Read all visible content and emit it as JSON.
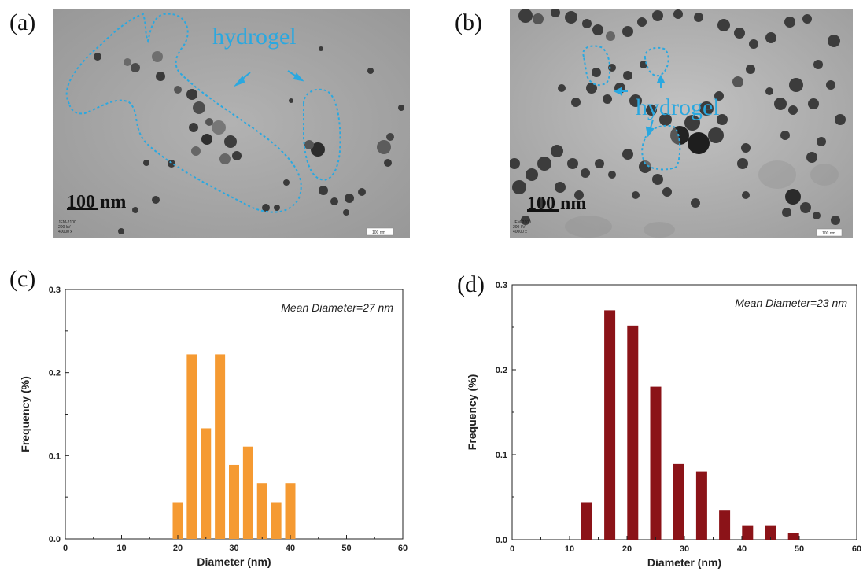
{
  "figure": {
    "panels": {
      "a": {
        "letter": "(a)",
        "hydrogel_label": "hydrogel",
        "scale_bar_label": "100 nm",
        "instrument_text": [
          "JEM-2100",
          "200 kV",
          "40000 x"
        ],
        "scale_box_text": "100 nm"
      },
      "b": {
        "letter": "(b)",
        "hydrogel_label": "hydrogel",
        "scale_bar_label": "100 nm",
        "instrument_text": [
          "JEM-2100",
          "200 kV",
          "40000 x"
        ],
        "scale_box_text": "100 nm"
      },
      "c": {
        "letter": "(c)"
      },
      "d": {
        "letter": "(d)"
      }
    },
    "colors": {
      "hydrogel_outline": "#2aa8e0",
      "orange_bars": "#f59a32",
      "red_bars": "#8b1318",
      "axis": "#222222"
    }
  },
  "chart_data": [
    {
      "type": "bar",
      "panel": "c",
      "x": [
        20,
        22.5,
        25,
        27.5,
        30,
        32.5,
        35,
        37.5,
        40
      ],
      "values": [
        0.044,
        0.222,
        0.133,
        0.222,
        0.089,
        0.111,
        0.067,
        0.044,
        0.067
      ],
      "xlabel": "Diameter (nm)",
      "ylabel": "Frequency (%)",
      "annotation": "Mean Diameter=27 nm",
      "xlim": [
        0,
        60
      ],
      "ylim": [
        0,
        0.3
      ],
      "xticks": [
        "0",
        "10",
        "20",
        "30",
        "40",
        "50",
        "60"
      ],
      "yticks": [
        "0.0",
        "0.1",
        "0.2",
        "0.3"
      ],
      "color": "#f59a32"
    },
    {
      "type": "bar",
      "panel": "d",
      "x": [
        13,
        17,
        21,
        25,
        29,
        33,
        37,
        41,
        45,
        49
      ],
      "values": [
        0.044,
        0.27,
        0.252,
        0.18,
        0.089,
        0.08,
        0.035,
        0.017,
        0.017,
        0.008
      ],
      "xlabel": "Diameter (nm)",
      "ylabel": "Frequency (%)",
      "annotation": "Mean Diameter=23 nm",
      "xlim": [
        0,
        60
      ],
      "ylim": [
        0,
        0.3
      ],
      "xticks": [
        "0",
        "10",
        "20",
        "30",
        "40",
        "50",
        "60"
      ],
      "yticks": [
        "0.0",
        "0.1",
        "0.2",
        "0.3"
      ],
      "color": "#8b1318"
    }
  ]
}
